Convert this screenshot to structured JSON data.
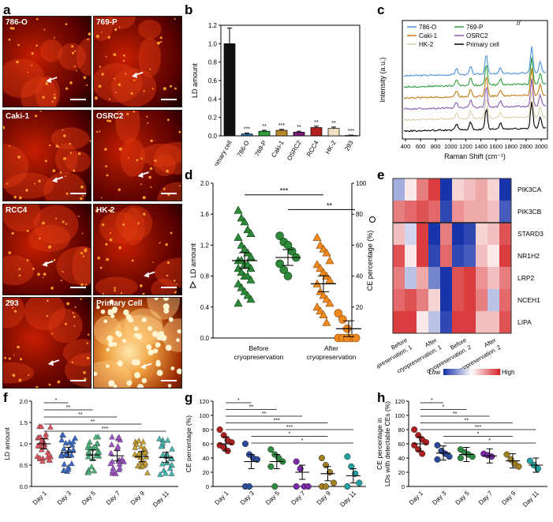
{
  "labels": {
    "a": "a",
    "b": "b",
    "c": "c",
    "d": "d",
    "e": "e",
    "f": "f",
    "g": "g",
    "h": "h"
  },
  "panel_a": {
    "tiles": [
      "786-O",
      "769-P",
      "Caki-1",
      "OSRC2",
      "RCC4",
      "HK-2",
      "293",
      "Primary Cell"
    ],
    "colors": {
      "dark": "#5a0000",
      "mid": "#c81e00",
      "bright": "#ff9a2a"
    }
  },
  "chart_data": [
    {
      "id": "b",
      "type": "bar",
      "categories": [
        "Primary cell",
        "786-O",
        "769-P",
        "Caki-1",
        "OSRC2",
        "RCC4",
        "HK-2",
        "293"
      ],
      "values": [
        1.0,
        0.02,
        0.05,
        0.06,
        0.04,
        0.09,
        0.08,
        0.005
      ],
      "errors": [
        0.17,
        0.01,
        0.01,
        0.01,
        0.01,
        0.015,
        0.015,
        0.003
      ],
      "significance": [
        "",
        "***",
        "**",
        "***",
        "**",
        "**",
        "**",
        "***"
      ],
      "colors": [
        "#111111",
        "#1f6fa8",
        "#2e9e3a",
        "#b8862b",
        "#7a1a7a",
        "#b02020",
        "#f0e0c0",
        "#ffffff"
      ],
      "ylabel": "LD amount",
      "ylim": [
        0,
        1.2
      ],
      "yticks": [
        "0.0",
        "0.2",
        "0.4",
        "0.6",
        "0.8",
        "1.0",
        "1.2"
      ]
    },
    {
      "id": "c",
      "type": "line",
      "series": [
        {
          "name": "786-O",
          "color": "#4a90d9"
        },
        {
          "name": "769-P",
          "color": "#2e9e3a"
        },
        {
          "name": "Caki-1",
          "color": "#c47a10"
        },
        {
          "name": "OSRC2",
          "color": "#8a5ab0"
        },
        {
          "name": "HK-2",
          "color": "#d8cfa8"
        },
        {
          "name": "Primary cell",
          "color": "#000000"
        }
      ],
      "xlabel": "Raman Shift (cm⁻¹)",
      "ylabel": "Intensity (a.u.)",
      "xticks": [
        "400",
        "600",
        "800",
        "1000",
        "1200",
        "1400",
        "1600",
        "1800",
        "2800",
        "3000"
      ]
    },
    {
      "id": "d",
      "type": "scatter",
      "ylabel": "LD amount",
      "y2label": "CE percentage (%)",
      "ylim": [
        0,
        2.0
      ],
      "yticks": [
        "0.0",
        "0.4",
        "0.8",
        "1.2",
        "1.6",
        "2.0"
      ],
      "y2ticks": [
        "0",
        "20",
        "40",
        "60",
        "80",
        "100"
      ],
      "categories": [
        "Before cryopreservation",
        "After cryopreservation"
      ],
      "triangles_before": [
        1.65,
        1.55,
        1.5,
        1.4,
        1.35,
        1.3,
        1.2,
        1.15,
        1.1,
        1.05,
        1.0,
        1.0,
        0.95,
        0.95,
        0.9,
        0.9,
        0.85,
        0.8,
        0.8,
        0.75,
        0.7,
        0.65,
        0.6,
        0.55,
        0.5,
        0.45
      ],
      "circles_before": [
        66,
        62,
        60,
        56,
        52,
        48,
        44,
        40
      ],
      "triangles_after": [
        1.3,
        1.2,
        1.15,
        1.1,
        1.0,
        0.95,
        0.9,
        0.85,
        0.8,
        0.75,
        0.7,
        0.6,
        0.55,
        0.5,
        0.45,
        0.4,
        0.35,
        0.3,
        0.2
      ],
      "circles_after": [
        16,
        12,
        6,
        0,
        0,
        0,
        0,
        0
      ],
      "sig": [
        {
          "label": "***"
        },
        {
          "label": "**"
        }
      ]
    },
    {
      "id": "e",
      "type": "heatmap",
      "rows": [
        "PIK3CA",
        "PIK3CB",
        "STARD3",
        "NR1H2",
        "LRP2",
        "NCEH1",
        "LIPA"
      ],
      "columns": [
        "Before cryopreservation. 1",
        "After cryopreservation. 1",
        "Before cryopreservation. 2",
        "After cryopreservation. 2"
      ],
      "legend_low": "Low",
      "legend_high": "High",
      "matrix": [
        [
          -0.4,
          0.1,
          0.6,
          0.9,
          -1,
          0.2,
          0.3,
          0.4,
          0.2,
          -1
        ],
        [
          0.6,
          0.7,
          0.8,
          0.7,
          -0.9,
          0.5,
          0.4,
          0.4,
          0.3,
          -0.8
        ],
        [
          0.3,
          -0.2,
          0.9,
          -1,
          0.6,
          -1,
          -0.9,
          0.2,
          0.3,
          0.8
        ],
        [
          0.8,
          0.1,
          0.9,
          -0.9,
          0.7,
          -0.9,
          -0.8,
          0.3,
          0.1,
          0.9
        ],
        [
          0.6,
          -0.3,
          0.4,
          -0.6,
          -1,
          0.8,
          0.9,
          0.5,
          0.3,
          0.6
        ],
        [
          0.7,
          0.8,
          0.6,
          0.2,
          -1,
          0.8,
          0.9,
          0.6,
          -0.3,
          0.7
        ],
        [
          0.9,
          0.9,
          0.1,
          -0.3,
          -0.9,
          0.9,
          0.9,
          0.3,
          0.3,
          0.8
        ]
      ]
    },
    {
      "id": "f",
      "type": "scatter",
      "categories": [
        "Day 1",
        "Day 3",
        "Day 5",
        "Day 7",
        "Day 9",
        "Day 11"
      ],
      "ylabel": "LD amount",
      "ylim": [
        0,
        2.0
      ],
      "yticks": [
        "0.0",
        "0.5",
        "1.0",
        "1.5",
        "2.0"
      ],
      "means": [
        1.0,
        0.8,
        0.74,
        0.72,
        0.7,
        0.68
      ],
      "colors": [
        "#e05560",
        "#3a6ac8",
        "#49b57a",
        "#a052c8",
        "#c8a030",
        "#40b8b0"
      ],
      "sig": [
        "*",
        "**",
        "**",
        "**",
        "***"
      ]
    },
    {
      "id": "g",
      "type": "scatter",
      "categories": [
        "Day 1",
        "Day 3",
        "Day 5",
        "Day 7",
        "Day 9",
        "Day 11"
      ],
      "ylabel": "CE percentage (%)",
      "ylim": [
        0,
        120
      ],
      "yticks": [
        "0",
        "20",
        "40",
        "60",
        "80",
        "100",
        "120"
      ],
      "means": [
        60,
        35,
        35,
        20,
        18,
        15
      ],
      "points": [
        [
          80,
          72,
          65,
          62,
          58,
          55,
          50
        ],
        [
          60,
          45,
          40,
          38,
          0,
          0
        ],
        [
          52,
          45,
          40,
          35,
          28,
          0
        ],
        [
          35,
          25,
          0,
          0,
          0
        ],
        [
          40,
          30,
          20,
          5,
          0,
          0
        ],
        [
          42,
          28,
          18,
          5,
          0
        ]
      ],
      "colors": [
        "#b02020",
        "#2a4a9a",
        "#2e8a40",
        "#7a2aa8",
        "#a08020",
        "#20a0a0"
      ],
      "sig": [
        "*",
        "**",
        "**",
        "***",
        "***",
        "*",
        "*"
      ]
    },
    {
      "id": "h",
      "type": "scatter",
      "categories": [
        "Day 1",
        "Day 3",
        "Day 5",
        "Day 7",
        "Day 9",
        "Day 11"
      ],
      "ylabel": "CE percentage in LDs with detectable CEs (%)",
      "ylim": [
        0,
        120
      ],
      "yticks": [
        "0",
        "20",
        "40",
        "60",
        "80",
        "100",
        "120"
      ],
      "means": [
        60,
        47,
        45,
        43,
        36,
        30
      ],
      "points": [
        [
          80,
          72,
          66,
          62,
          58,
          52,
          46
        ],
        [
          58,
          50,
          46,
          42,
          38
        ],
        [
          52,
          48,
          45,
          42,
          40
        ],
        [
          46,
          44,
          42
        ],
        [
          45,
          38,
          32,
          28
        ],
        [
          36,
          30,
          25
        ]
      ],
      "colors": [
        "#b02020",
        "#2a4a9a",
        "#2e8a40",
        "#7a2aa8",
        "#a08020",
        "#20a0a0"
      ],
      "sig": [
        "*",
        "*",
        "**",
        "**",
        "***",
        "*",
        "*"
      ]
    }
  ]
}
